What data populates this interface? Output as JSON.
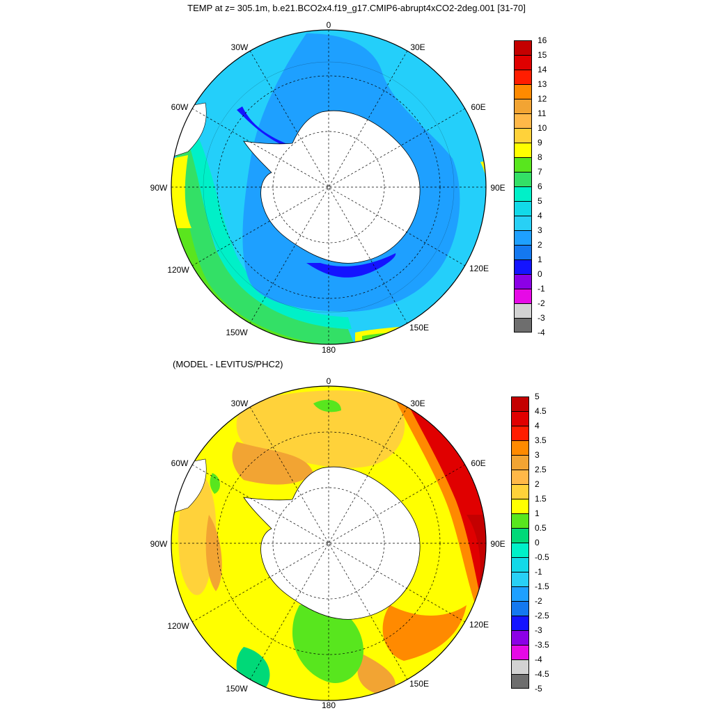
{
  "titles": {
    "main": "TEMP at z= 305.1m, b.e21.BCO2x4.f19_g17.CMIP6-abrupt4xCO2-2deg.001 [31-70]",
    "sub": "(MODEL - LEVITUS/PHC2)"
  },
  "longitude_labels": [
    "0",
    "30E",
    "60E",
    "90E",
    "120E",
    "150E",
    "180",
    "150W",
    "120W",
    "90W",
    "60W",
    "30W"
  ],
  "colorbar_top": {
    "labels": [
      "16",
      "15",
      "14",
      "13",
      "12",
      "11",
      "10",
      "9",
      "8",
      "7",
      "6",
      "5",
      "4",
      "3",
      "2",
      "1",
      "0",
      "-1",
      "-2",
      "-3",
      "-4"
    ],
    "colors": [
      "#c40000",
      "#e00000",
      "#ff1d00",
      "#ff8a00",
      "#f2a433",
      "#ffb848",
      "#ffd23a",
      "#ffff00",
      "#58e61e",
      "#33e066",
      "#00f0c8",
      "#12d9e8",
      "#28d0f5",
      "#1ea0ff",
      "#1478f0",
      "#1414ff",
      "#8c00e6",
      "#e60ae6",
      "#d2d2d2",
      "#6e6e6e"
    ]
  },
  "colorbar_bottom": {
    "labels": [
      "5",
      "4.5",
      "4",
      "3.5",
      "3",
      "2.5",
      "2",
      "1.5",
      "1",
      "0.5",
      "0",
      "-0.5",
      "-1",
      "-1.5",
      "-2",
      "-2.5",
      "-3",
      "-3.5",
      "-4",
      "-4.5",
      "-5"
    ],
    "colors": [
      "#c40000",
      "#e00000",
      "#ff1d00",
      "#ff8a00",
      "#f2a433",
      "#ffb848",
      "#ffd23a",
      "#ffff00",
      "#58e61e",
      "#00d978",
      "#00f0c8",
      "#12d9e8",
      "#28d0f5",
      "#1ea0ff",
      "#1478f0",
      "#1414ff",
      "#8c00e6",
      "#e60ae6",
      "#d2d2d2",
      "#6e6e6e"
    ]
  }
}
